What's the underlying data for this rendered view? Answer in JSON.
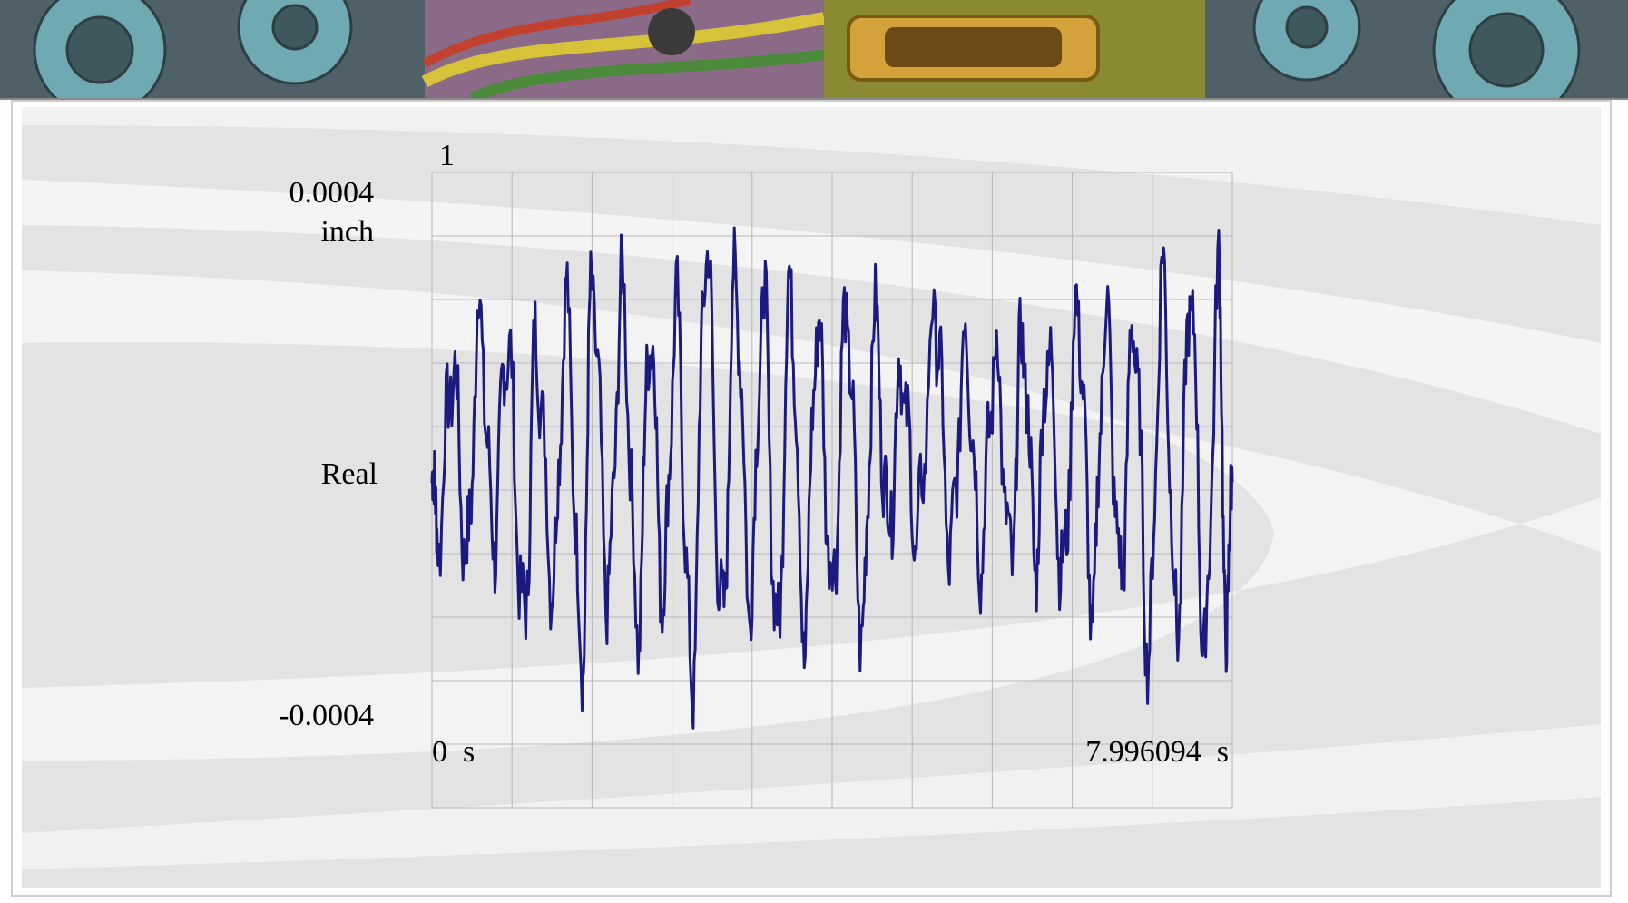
{
  "chart_data": {
    "type": "line",
    "title": "1",
    "ylabel": "Real",
    "yunit": "inch",
    "xunit": "s",
    "xlim": [
      0,
      7.996094
    ],
    "ylim": [
      -0.0004,
      0.0004
    ],
    "y_max_label": "0.0004",
    "y_min_label": "-0.0004",
    "x_min_label": "0",
    "x_max_label": "7.996094",
    "grid": true,
    "grid_divisions": {
      "x": 10,
      "y": 10
    },
    "line_color": "#1a1a80",
    "series": [
      {
        "peaks_x": [
          0.21,
          0.47,
          0.75,
          1.04,
          1.34,
          1.6,
          1.9,
          2.18,
          2.44,
          2.74,
          3.03,
          3.31,
          3.58,
          3.85,
          4.14,
          4.42,
          4.69,
          5.03,
          5.33,
          5.63,
          5.9,
          6.16,
          6.45,
          6.73,
          7.01,
          7.3,
          7.58,
          7.86
        ],
        "peaks_y": [
          0.00015,
          0.00022,
          0.00019,
          0.00018,
          0.00023,
          0.00026,
          0.00025,
          0.00021,
          0.00022,
          0.00031,
          0.00027,
          0.00024,
          0.00026,
          0.00021,
          0.00022,
          0.00021,
          0.00015,
          0.00022,
          0.00019,
          0.00017,
          0.00019,
          0.00018,
          0.00023,
          0.00022,
          0.00021,
          0.00027,
          0.00025,
          0.00026
        ],
        "troughs_x": [
          0.05,
          0.35,
          0.62,
          0.92,
          1.21,
          1.5,
          1.76,
          2.06,
          2.31,
          2.6,
          2.9,
          3.18,
          3.45,
          3.72,
          4.0,
          4.3,
          4.56,
          4.84,
          5.18,
          5.48,
          5.78,
          6.03,
          6.3,
          6.6,
          6.88,
          7.16,
          7.44,
          7.72,
          7.94
        ],
        "troughs_y": [
          -6e-05,
          -9e-05,
          -6e-05,
          -0.00017,
          -0.00011,
          -0.00021,
          -0.00013,
          -0.00017,
          -0.00013,
          -0.00024,
          -0.00017,
          -0.00014,
          -0.00019,
          -0.00018,
          -0.00012,
          -0.00018,
          -4e-05,
          -6e-05,
          -8e-05,
          -8e-05,
          -9e-05,
          -8e-05,
          -0.00011,
          -0.00015,
          -0.00011,
          -0.0002,
          -0.00017,
          -0.0002,
          -0.00019
        ]
      }
    ]
  }
}
